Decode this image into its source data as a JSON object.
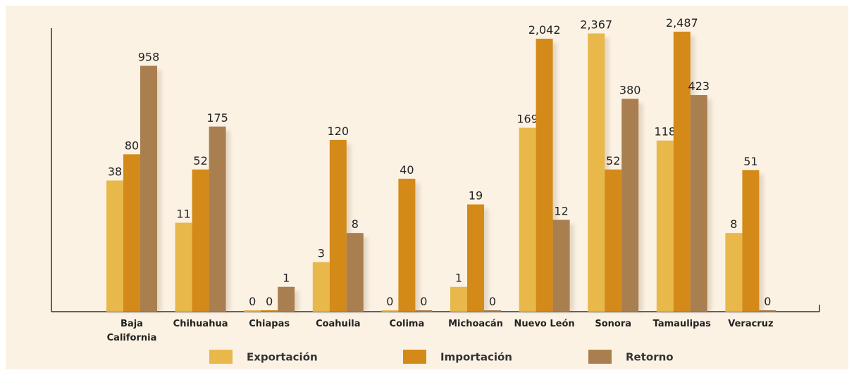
{
  "chart_data": {
    "type": "bar",
    "log_scale": true,
    "categories": [
      "Baja California",
      "Chihuahua",
      "Chiapas",
      "Coahuila",
      "Colima",
      "Michoacán",
      "Nuevo León",
      "Sonora",
      "Tamaulipas",
      "Veracruz"
    ],
    "series": [
      {
        "name": "Exportación",
        "color": "#e8b84b",
        "values": [
          38,
          11,
          0,
          3,
          0,
          1,
          169,
          2367,
          118,
          8
        ],
        "value_labels": [
          "38",
          "11",
          "0",
          "3",
          "0",
          "1",
          "169",
          "2,367",
          "118",
          "8"
        ]
      },
      {
        "name": "Importación",
        "color": "#d48a18",
        "values": [
          80,
          52,
          0,
          120,
          40,
          19,
          2042,
          52,
          2487,
          51
        ],
        "value_labels": [
          "80",
          "52",
          "0",
          "120",
          "40",
          "19",
          "2,042",
          "52",
          "2,487",
          "51"
        ]
      },
      {
        "name": "Retorno",
        "color": "#a97f4f",
        "values": [
          958,
          175,
          1,
          8,
          0,
          0,
          12,
          380,
          423,
          0
        ],
        "value_labels": [
          "958",
          "175",
          "1",
          "8",
          "0",
          "0",
          "12",
          "380",
          "423",
          "0"
        ]
      }
    ]
  }
}
